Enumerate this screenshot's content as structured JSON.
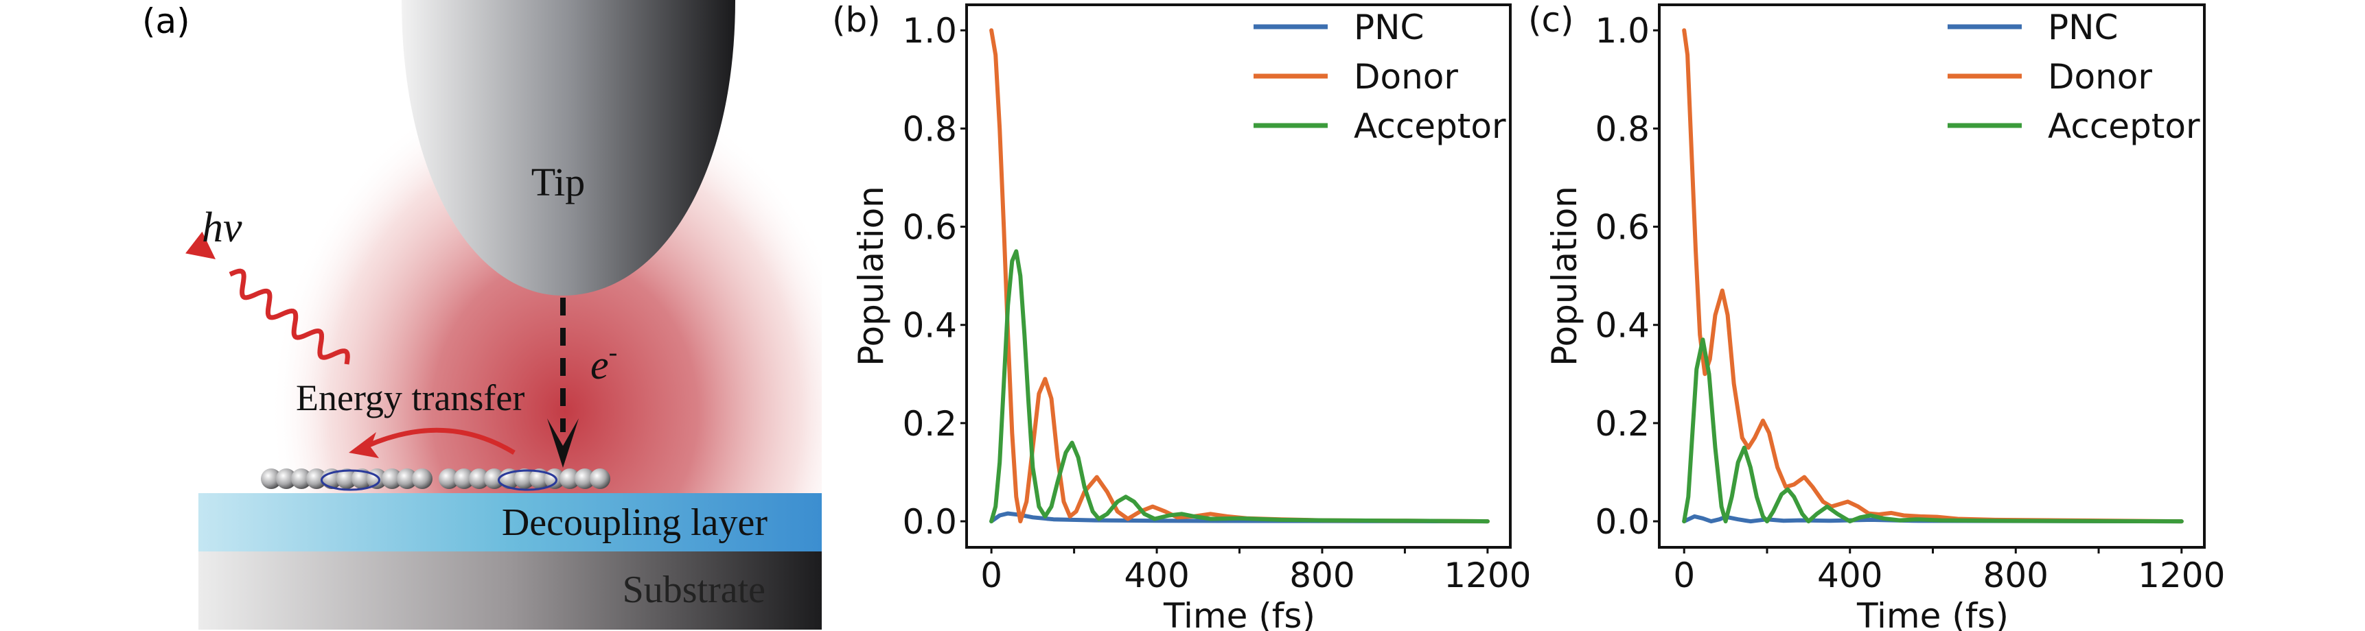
{
  "panel_a": {
    "label": "(a)",
    "tip": "Tip",
    "photon": "hv",
    "electron": "e",
    "electron_sup": "-",
    "energy_transfer": "Energy transfer",
    "decoupling_layer": "Decoupling layer",
    "substrate": "Substrate",
    "colors": {
      "glow": "#c0323c",
      "arrow": "#d42a2a",
      "layer_light": "#c4e6f2",
      "layer_dark": "#3c8ed0"
    }
  },
  "chart_data": [
    {
      "panel_label": "(b)",
      "type": "line",
      "xlabel": "Time (fs)",
      "ylabel": "Population",
      "xlim": [
        -60,
        1255
      ],
      "ylim": [
        -0.053,
        1.052
      ],
      "xticks": [
        0,
        400,
        800,
        1200
      ],
      "xtick_labels": [
        "0",
        "400",
        "800",
        "1200"
      ],
      "xminor": [
        200,
        600,
        1000
      ],
      "yticks": [
        0,
        0.2,
        0.4,
        0.6,
        0.8,
        1.0
      ],
      "ytick_labels": [
        "0.0",
        "0.2",
        "0.4",
        "0.6",
        "0.8",
        "1.0"
      ],
      "grid": false,
      "legend_position": "top-right",
      "series": [
        {
          "name": "PNC",
          "color": "#3c6fb0",
          "points": [
            [
              0,
              0
            ],
            [
              20,
              0.012
            ],
            [
              40,
              0.016
            ],
            [
              70,
              0.013
            ],
            [
              100,
              0.008
            ],
            [
              150,
              0.004
            ],
            [
              250,
              0.002
            ],
            [
              400,
              0.001
            ],
            [
              1200,
              0
            ]
          ]
        },
        {
          "name": "Donor",
          "color": "#e36c2f",
          "points": [
            [
              0,
              1.0
            ],
            [
              10,
              0.95
            ],
            [
              20,
              0.8
            ],
            [
              30,
              0.6
            ],
            [
              40,
              0.38
            ],
            [
              50,
              0.18
            ],
            [
              60,
              0.05
            ],
            [
              70,
              0.0
            ],
            [
              85,
              0.04
            ],
            [
              100,
              0.15
            ],
            [
              115,
              0.26
            ],
            [
              130,
              0.29
            ],
            [
              145,
              0.25
            ],
            [
              160,
              0.13
            ],
            [
              175,
              0.04
            ],
            [
              190,
              0.01
            ],
            [
              205,
              0.02
            ],
            [
              225,
              0.06
            ],
            [
              255,
              0.09
            ],
            [
              280,
              0.06
            ],
            [
              305,
              0.02
            ],
            [
              330,
              0.005
            ],
            [
              360,
              0.02
            ],
            [
              390,
              0.03
            ],
            [
              420,
              0.02
            ],
            [
              450,
              0.008
            ],
            [
              490,
              0.01
            ],
            [
              530,
              0.015
            ],
            [
              570,
              0.01
            ],
            [
              620,
              0.006
            ],
            [
              700,
              0.004
            ],
            [
              800,
              0.002
            ],
            [
              1000,
              0.001
            ],
            [
              1200,
              0.0
            ]
          ]
        },
        {
          "name": "Acceptor",
          "color": "#3b9b3b",
          "points": [
            [
              0,
              0.0
            ],
            [
              10,
              0.03
            ],
            [
              20,
              0.12
            ],
            [
              30,
              0.28
            ],
            [
              40,
              0.44
            ],
            [
              50,
              0.53
            ],
            [
              60,
              0.55
            ],
            [
              70,
              0.5
            ],
            [
              80,
              0.38
            ],
            [
              90,
              0.24
            ],
            [
              100,
              0.11
            ],
            [
              115,
              0.03
            ],
            [
              130,
              0.01
            ],
            [
              145,
              0.03
            ],
            [
              160,
              0.08
            ],
            [
              180,
              0.14
            ],
            [
              195,
              0.16
            ],
            [
              210,
              0.13
            ],
            [
              225,
              0.07
            ],
            [
              245,
              0.02
            ],
            [
              260,
              0.005
            ],
            [
              280,
              0.015
            ],
            [
              305,
              0.04
            ],
            [
              325,
              0.05
            ],
            [
              345,
              0.04
            ],
            [
              370,
              0.015
            ],
            [
              395,
              0.005
            ],
            [
              430,
              0.012
            ],
            [
              460,
              0.015
            ],
            [
              490,
              0.01
            ],
            [
              530,
              0.005
            ],
            [
              600,
              0.006
            ],
            [
              700,
              0.003
            ],
            [
              800,
              0.002
            ],
            [
              1000,
              0.001
            ],
            [
              1200,
              0.0
            ]
          ]
        }
      ]
    },
    {
      "panel_label": "(c)",
      "type": "line",
      "xlabel": "Time (fs)",
      "ylabel": "Population",
      "xlim": [
        -60,
        1255
      ],
      "ylim": [
        -0.053,
        1.052
      ],
      "xticks": [
        0,
        400,
        800,
        1200
      ],
      "xtick_labels": [
        "0",
        "400",
        "800",
        "1200"
      ],
      "xminor": [
        200,
        600,
        1000
      ],
      "yticks": [
        0,
        0.2,
        0.4,
        0.6,
        0.8,
        1.0
      ],
      "ytick_labels": [
        "0.0",
        "0.2",
        "0.4",
        "0.6",
        "0.8",
        "1.0"
      ],
      "grid": false,
      "legend_position": "top-right",
      "series": [
        {
          "name": "PNC",
          "color": "#3c6fb0",
          "points": [
            [
              0,
              0
            ],
            [
              25,
              0.01
            ],
            [
              45,
              0.006
            ],
            [
              65,
              0.0
            ],
            [
              85,
              0.004
            ],
            [
              100,
              0.009
            ],
            [
              130,
              0.004
            ],
            [
              160,
              0.0
            ],
            [
              200,
              0.004
            ],
            [
              240,
              0.001
            ],
            [
              280,
              0.002
            ],
            [
              350,
              0.001
            ],
            [
              450,
              0.003
            ],
            [
              550,
              0.001
            ],
            [
              1200,
              0
            ]
          ]
        },
        {
          "name": "Donor",
          "color": "#e36c2f",
          "points": [
            [
              0,
              1.0
            ],
            [
              8,
              0.95
            ],
            [
              18,
              0.75
            ],
            [
              28,
              0.55
            ],
            [
              38,
              0.38
            ],
            [
              50,
              0.3
            ],
            [
              62,
              0.33
            ],
            [
              75,
              0.42
            ],
            [
              92,
              0.47
            ],
            [
              105,
              0.42
            ],
            [
              120,
              0.28
            ],
            [
              140,
              0.17
            ],
            [
              155,
              0.15
            ],
            [
              170,
              0.17
            ],
            [
              190,
              0.205
            ],
            [
              205,
              0.18
            ],
            [
              225,
              0.11
            ],
            [
              245,
              0.07
            ],
            [
              265,
              0.075
            ],
            [
              290,
              0.09
            ],
            [
              310,
              0.07
            ],
            [
              335,
              0.04
            ],
            [
              355,
              0.03
            ],
            [
              375,
              0.035
            ],
            [
              395,
              0.04
            ],
            [
              420,
              0.03
            ],
            [
              445,
              0.016
            ],
            [
              470,
              0.014
            ],
            [
              500,
              0.017
            ],
            [
              530,
              0.012
            ],
            [
              570,
              0.01
            ],
            [
              610,
              0.009
            ],
            [
              660,
              0.005
            ],
            [
              750,
              0.003
            ],
            [
              900,
              0.002
            ],
            [
              1200,
              0.0
            ]
          ]
        },
        {
          "name": "Acceptor",
          "color": "#3b9b3b",
          "points": [
            [
              0,
              0
            ],
            [
              10,
              0.05
            ],
            [
              20,
              0.18
            ],
            [
              30,
              0.31
            ],
            [
              45,
              0.37
            ],
            [
              60,
              0.3
            ],
            [
              75,
              0.15
            ],
            [
              90,
              0.03
            ],
            [
              100,
              0.0
            ],
            [
              115,
              0.05
            ],
            [
              130,
              0.12
            ],
            [
              145,
              0.15
            ],
            [
              160,
              0.11
            ],
            [
              175,
              0.05
            ],
            [
              190,
              0.01
            ],
            [
              200,
              0.0
            ],
            [
              215,
              0.02
            ],
            [
              235,
              0.055
            ],
            [
              250,
              0.065
            ],
            [
              265,
              0.05
            ],
            [
              285,
              0.015
            ],
            [
              300,
              0.0
            ],
            [
              320,
              0.015
            ],
            [
              345,
              0.03
            ],
            [
              370,
              0.015
            ],
            [
              400,
              0.0
            ],
            [
              425,
              0.008
            ],
            [
              450,
              0.012
            ],
            [
              480,
              0.006
            ],
            [
              520,
              0.002
            ],
            [
              560,
              0.004
            ],
            [
              620,
              0.002
            ],
            [
              750,
              0.001
            ],
            [
              1200,
              0
            ]
          ]
        }
      ]
    }
  ]
}
